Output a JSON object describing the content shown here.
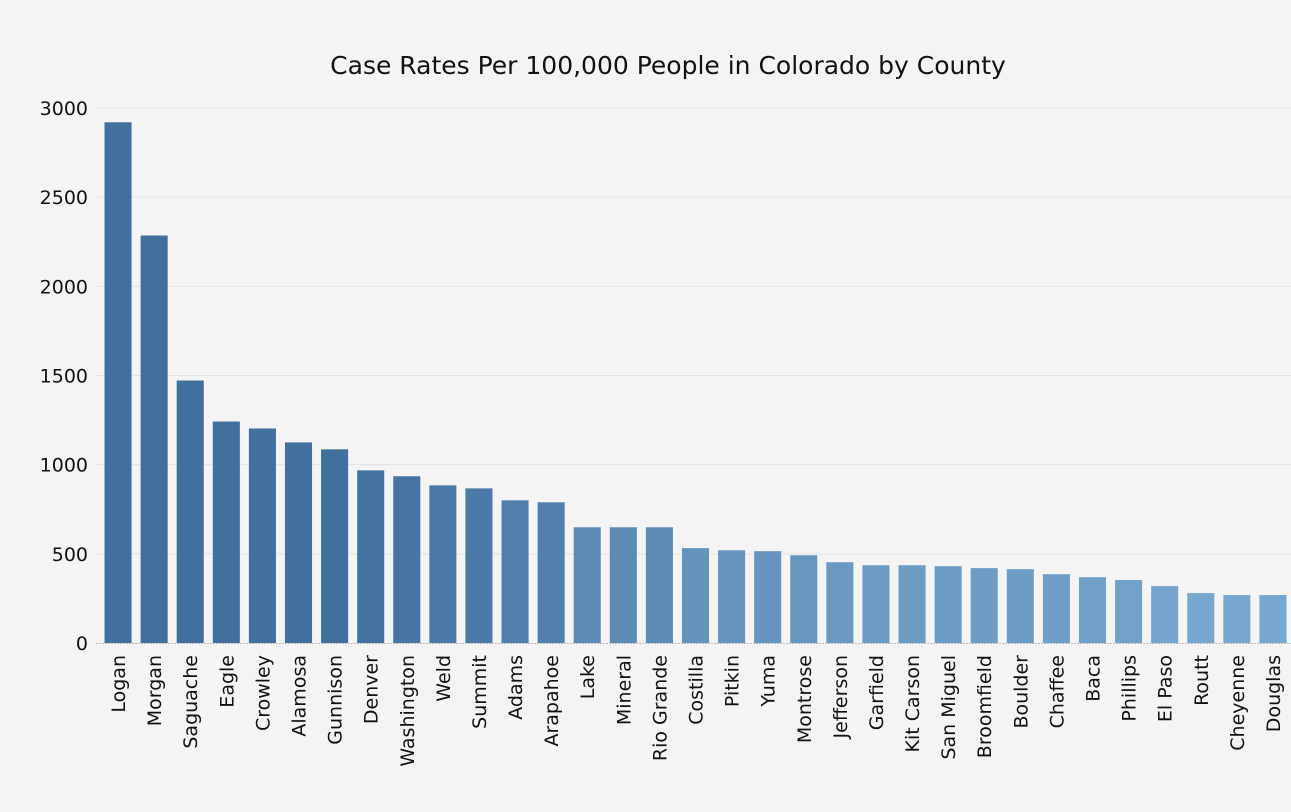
{
  "chart_data": {
    "type": "bar",
    "title": "Case Rates Per 100,000 People in Colorado by County",
    "xlabel": "",
    "ylabel": "",
    "ylim": [
      0,
      3000
    ],
    "yticks": [
      0,
      500,
      1000,
      1500,
      2000,
      2500,
      3000
    ],
    "grid": true,
    "legend": "none",
    "categories": [
      "Logan",
      "Morgan",
      "Saguache",
      "Eagle",
      "Crowley",
      "Alamosa",
      "Gunnison",
      "Denver",
      "Washington",
      "Weld",
      "Summit",
      "Adams",
      "Arapahoe",
      "Lake",
      "Mineral",
      "Rio Grande",
      "Costilla",
      "Pitkin",
      "Yuma",
      "Montrose",
      "Jefferson",
      "Garfield",
      "Kit Carson",
      "San Miguel",
      "Broomfield",
      "Boulder",
      "Chaffee",
      "Baca",
      "Phillips",
      "El Paso",
      "Routt",
      "Cheyenne",
      "Douglas"
    ],
    "values": [
      2920,
      2285,
      1472,
      1242,
      1203,
      1125,
      1086,
      968,
      935,
      884,
      867,
      800,
      789,
      649,
      649,
      649,
      532,
      520,
      515,
      492,
      453,
      436,
      436,
      431,
      420,
      414,
      386,
      369,
      353,
      319,
      280,
      269,
      269
    ],
    "colors": {
      "dark": "#41709f",
      "mid": "#4f80ae",
      "light": "#79a9d0"
    }
  }
}
